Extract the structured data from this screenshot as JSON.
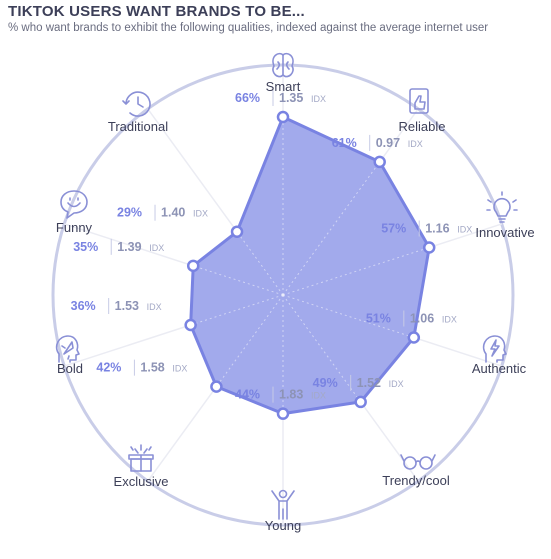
{
  "header": {
    "title": "TIKTOK USERS WANT BRANDS TO BE...",
    "subtitle": "% who want brands to exhibit the following qualities, indexed against the average internet user"
  },
  "chart_data": {
    "type": "radar",
    "title": "TIKTOK USERS WANT BRANDS TO BE...",
    "subtitle": "% who want brands to exhibit the following qualities, indexed against the average internet user",
    "value_unit": "%",
    "index_suffix": "IDX",
    "categories": [
      "Smart",
      "Reliable",
      "Innovative",
      "Authentic",
      "Trendy/cool",
      "Young",
      "Exclusive",
      "Bold",
      "Funny",
      "Traditional"
    ],
    "series": [
      {
        "values": [
          66,
          61,
          57,
          51,
          49,
          44,
          42,
          36,
          35,
          29
        ]
      }
    ],
    "index_values": [
      "1.35",
      "0.97",
      "1.16",
      "1.06",
      "1.52",
      "1.83",
      "1.58",
      "1.53",
      "1.39",
      "1.40"
    ],
    "value_labels": [
      "66%",
      "61%",
      "57%",
      "51%",
      "49%",
      "44%",
      "42%",
      "36%",
      "35%",
      "29%"
    ],
    "icons": [
      "brain-icon",
      "document-thumbs-up-icon",
      "lightbulb-icon",
      "head-lightning-icon",
      "glasses-icon",
      "person-arms-raised-icon",
      "gift-box-icon",
      "head-rocket-icon",
      "smiley-speech-bubble-icon",
      "clock-refresh-icon"
    ],
    "colors": {
      "fill": "#9aa3ea",
      "stroke": "#7983e2",
      "ring": "#c9cde8",
      "spoke": "#ebecf3",
      "label": "#3c3f58",
      "value": "#7983e2",
      "icon": "#8a90d6"
    }
  }
}
